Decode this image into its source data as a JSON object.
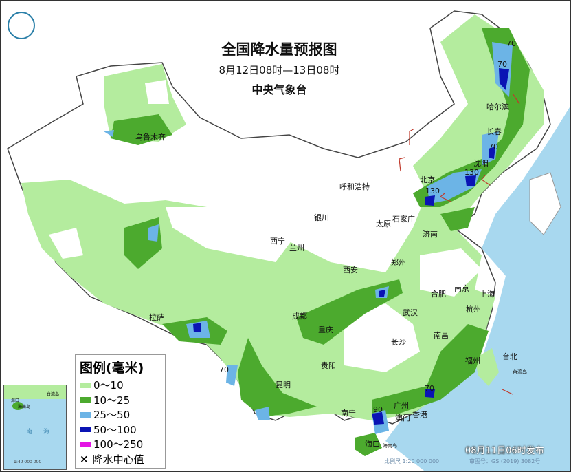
{
  "header": {
    "title": "全国降水量预报图",
    "period": "8月12日08时—13日08时",
    "issuer": "中央气象台"
  },
  "legend": {
    "title": "图例(毫米)",
    "items": [
      {
        "label": "0～10",
        "color": "#b4ec9e"
      },
      {
        "label": "10～25",
        "color": "#4caa2e"
      },
      {
        "label": "25～50",
        "color": "#6cb4e6"
      },
      {
        "label": "50～100",
        "color": "#0a14b4"
      },
      {
        "label": "100～250",
        "color": "#e414e4"
      }
    ],
    "center_marker": "×",
    "center_label": "降水中心值"
  },
  "cities": [
    "乌鲁木齐",
    "呼和浩特",
    "北京",
    "哈尔滨",
    "长春",
    "沈阳",
    "银川",
    "石家庄",
    "太原",
    "济南",
    "西宁",
    "兰州",
    "郑州",
    "西安",
    "南京",
    "合肥",
    "上海",
    "杭州",
    "武汉",
    "成都",
    "拉萨",
    "重庆",
    "长沙",
    "南昌",
    "贵阳",
    "福州",
    "台北",
    "昆明",
    "广州",
    "南宁",
    "香港",
    "澳门",
    "海口",
    "海南岛",
    "台湾岛"
  ],
  "precip_centers": [
    "70",
    "70",
    "70",
    "130",
    "130",
    "70",
    "70",
    "90"
  ],
  "inset": {
    "sea_label": "南海",
    "scale": "1:40 000 000",
    "labels": [
      "海口",
      "海南岛",
      "台湾岛"
    ]
  },
  "footer": {
    "issued": "08月11日06时发布",
    "scale": "比例尺 1:20 000 000",
    "map_number": "审图号：GS (2019) 3082号"
  },
  "colors": {
    "sea": "#a8d8ef",
    "land": "#ffffff",
    "border": "#555555"
  }
}
